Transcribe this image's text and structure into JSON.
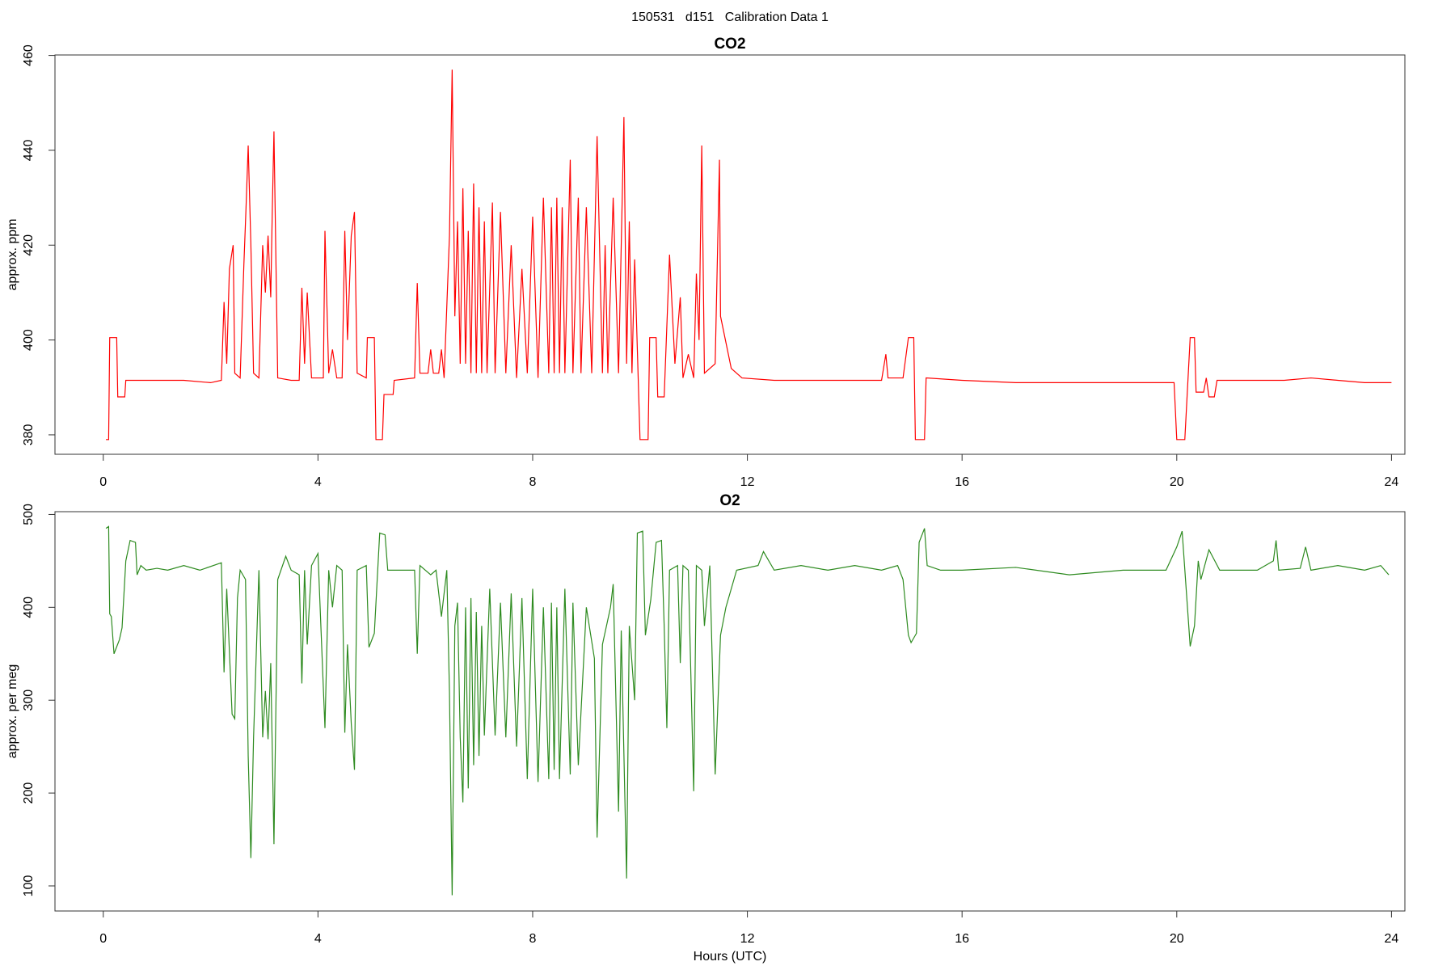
{
  "title": "150531   d151   Calibration Data 1",
  "chart_data": [
    {
      "type": "line",
      "title": "CO2",
      "ylabel": "approx. ppm",
      "color": "#ff0000",
      "x": [
        0.05,
        0.1,
        0.12,
        0.25,
        0.27,
        0.4,
        0.42,
        1,
        1.5,
        2,
        2.2,
        2.25,
        2.3,
        2.35,
        2.42,
        2.45,
        2.55,
        2.62,
        2.66,
        2.7,
        2.75,
        2.8,
        2.9,
        2.97,
        3.02,
        3.07,
        3.12,
        3.15,
        3.18,
        3.25,
        3.5,
        3.65,
        3.7,
        3.75,
        3.8,
        3.88,
        4.1,
        4.13,
        4.2,
        4.27,
        4.35,
        4.45,
        4.5,
        4.55,
        4.62,
        4.68,
        4.73,
        4.9,
        4.92,
        5.05,
        5.08,
        5.2,
        5.23,
        5.4,
        5.42,
        5.8,
        5.85,
        5.9,
        6.05,
        6.1,
        6.15,
        6.25,
        6.3,
        6.35,
        6.45,
        6.5,
        6.55,
        6.6,
        6.65,
        6.7,
        6.75,
        6.8,
        6.85,
        6.9,
        6.95,
        7.0,
        7.05,
        7.1,
        7.15,
        7.25,
        7.3,
        7.4,
        7.5,
        7.6,
        7.7,
        7.8,
        7.9,
        8.0,
        8.1,
        8.2,
        8.3,
        8.35,
        8.4,
        8.45,
        8.5,
        8.55,
        8.6,
        8.7,
        8.75,
        8.85,
        8.9,
        9.0,
        9.1,
        9.2,
        9.3,
        9.35,
        9.4,
        9.5,
        9.6,
        9.7,
        9.75,
        9.8,
        9.85,
        9.9,
        10.0,
        10.15,
        10.18,
        10.3,
        10.33,
        10.45,
        10.55,
        10.65,
        10.75,
        10.8,
        10.9,
        11.0,
        11.05,
        11.1,
        11.15,
        11.2,
        11.4,
        11.48,
        11.5,
        11.7,
        11.9,
        12.5,
        13,
        13.5,
        14,
        14.5,
        14.58,
        14.62,
        14.9,
        15.0,
        15.1,
        15.13,
        15.3,
        15.33,
        16,
        17,
        18,
        19,
        19.95,
        20.0,
        20.15,
        20.25,
        20.33,
        20.36,
        20.5,
        20.55,
        20.6,
        20.7,
        20.75,
        21,
        22,
        22.5,
        23,
        23.5,
        24
      ],
      "values": [
        379,
        379,
        400.5,
        400.5,
        388,
        388,
        391.5,
        391.5,
        391.5,
        391,
        391.5,
        408,
        395,
        415,
        420,
        393,
        392,
        416,
        428,
        441,
        420,
        393,
        392,
        420,
        410,
        422,
        409,
        428,
        444,
        392,
        391.5,
        391.5,
        411,
        395,
        410,
        392,
        392,
        423,
        393,
        398,
        392,
        392,
        423,
        400,
        422,
        427,
        393,
        392,
        400.5,
        400.5,
        379,
        379,
        388.5,
        388.5,
        391.5,
        392,
        412,
        393,
        393,
        398,
        393,
        393,
        398,
        392,
        422,
        457,
        405,
        425,
        395,
        432,
        395,
        423,
        393,
        433,
        393,
        428,
        393,
        425,
        393,
        429,
        393,
        427,
        393,
        420,
        392,
        415,
        393,
        426,
        392,
        430,
        393,
        428,
        393,
        430,
        393,
        428,
        393,
        438,
        393,
        430,
        393,
        428,
        393,
        443,
        393,
        420,
        393,
        430,
        393,
        447,
        395,
        425,
        393,
        417,
        379,
        379,
        400.5,
        400.5,
        388,
        388,
        418,
        395,
        409,
        392,
        397,
        392,
        414,
        400,
        441,
        393,
        395,
        438,
        405,
        394,
        392,
        391.5,
        391.5,
        391.5,
        391.5,
        391.5,
        397,
        392,
        392,
        400.5,
        400.5,
        379,
        379,
        392,
        391.5,
        391,
        391,
        391,
        391,
        379,
        379,
        400.5,
        400.5,
        389,
        389,
        392,
        388,
        388,
        391.5,
        391.5,
        391.5,
        392,
        391.5,
        391,
        391
      ],
      "xlim": [
        -0.9,
        24.25
      ],
      "xticks": [
        0,
        4,
        8,
        12,
        16,
        20,
        24
      ],
      "ylim": [
        375.9,
        460.1
      ],
      "yticks": [
        380,
        400,
        420,
        440,
        460
      ]
    },
    {
      "type": "line",
      "title": "O2",
      "ylabel": "approx. per meg",
      "xlabel": "Hours (UTC)",
      "color": "#2e8b20",
      "x": [
        0.05,
        0.1,
        0.12,
        0.15,
        0.2,
        0.3,
        0.35,
        0.42,
        0.5,
        0.6,
        0.63,
        0.7,
        0.8,
        1,
        1.2,
        1.5,
        1.8,
        2.2,
        2.25,
        2.3,
        2.4,
        2.45,
        2.5,
        2.55,
        2.65,
        2.7,
        2.75,
        2.8,
        2.9,
        2.97,
        3.02,
        3.07,
        3.12,
        3.18,
        3.25,
        3.4,
        3.5,
        3.65,
        3.7,
        3.75,
        3.8,
        3.88,
        4.0,
        4.13,
        4.2,
        4.27,
        4.35,
        4.45,
        4.5,
        4.55,
        4.62,
        4.68,
        4.73,
        4.9,
        4.95,
        5.05,
        5.15,
        5.25,
        5.3,
        5.5,
        5.8,
        5.85,
        5.9,
        6.1,
        6.2,
        6.3,
        6.4,
        6.45,
        6.5,
        6.55,
        6.6,
        6.65,
        6.7,
        6.75,
        6.8,
        6.85,
        6.9,
        6.95,
        7.0,
        7.05,
        7.1,
        7.2,
        7.3,
        7.4,
        7.5,
        7.6,
        7.7,
        7.8,
        7.9,
        8.0,
        8.1,
        8.2,
        8.3,
        8.35,
        8.4,
        8.45,
        8.5,
        8.6,
        8.7,
        8.75,
        8.85,
        9.0,
        9.15,
        9.2,
        9.3,
        9.45,
        9.5,
        9.6,
        9.65,
        9.75,
        9.8,
        9.9,
        9.95,
        10.05,
        10.1,
        10.2,
        10.3,
        10.4,
        10.45,
        10.5,
        10.55,
        10.7,
        10.75,
        10.8,
        10.9,
        11.0,
        11.05,
        11.15,
        11.2,
        11.3,
        11.4,
        11.5,
        11.6,
        11.8,
        12.2,
        12.3,
        12.5,
        13,
        13.5,
        14,
        14.5,
        14.8,
        14.9,
        15.0,
        15.05,
        15.15,
        15.2,
        15.3,
        15.35,
        15.6,
        16,
        17,
        18,
        19,
        19.8,
        20.0,
        20.1,
        20.25,
        20.33,
        20.4,
        20.45,
        20.6,
        20.8,
        21,
        21.5,
        21.8,
        21.85,
        21.9,
        22.3,
        22.4,
        22.5,
        23,
        23.5,
        23.8,
        23.95
      ],
      "values": [
        485,
        487,
        393,
        390,
        350,
        365,
        378,
        450,
        472,
        470,
        435,
        445,
        440,
        442,
        440,
        445,
        440,
        448,
        330,
        420,
        285,
        280,
        410,
        440,
        430,
        240,
        130,
        260,
        440,
        260,
        310,
        258,
        340,
        145,
        430,
        455,
        440,
        435,
        318,
        440,
        360,
        445,
        458,
        270,
        440,
        400,
        445,
        440,
        265,
        360,
        275,
        225,
        440,
        445,
        357,
        372,
        480,
        478,
        440,
        440,
        440,
        350,
        445,
        435,
        440,
        390,
        440,
        308,
        90,
        380,
        405,
        260,
        190,
        400,
        205,
        410,
        230,
        395,
        240,
        380,
        262,
        420,
        262,
        405,
        260,
        415,
        250,
        410,
        215,
        420,
        212,
        400,
        215,
        405,
        225,
        400,
        215,
        420,
        220,
        405,
        230,
        400,
        345,
        152,
        360,
        400,
        425,
        180,
        375,
        108,
        380,
        300,
        480,
        482,
        370,
        408,
        470,
        472,
        380,
        270,
        440,
        445,
        340,
        445,
        440,
        202,
        445,
        440,
        380,
        445,
        220,
        370,
        400,
        440,
        445,
        460,
        440,
        445,
        440,
        445,
        440,
        445,
        430,
        370,
        362,
        372,
        470,
        485,
        445,
        440,
        440,
        443,
        435,
        440,
        440,
        465,
        482,
        358,
        380,
        450,
        430,
        462,
        440,
        440,
        440,
        450,
        472,
        440,
        442,
        465,
        440,
        445,
        440,
        445,
        435
      ],
      "xlim": [
        -0.9,
        24.25
      ],
      "xticks": [
        0,
        4,
        8,
        12,
        16,
        20,
        24
      ],
      "ylim": [
        73,
        503
      ],
      "yticks": [
        100,
        200,
        300,
        400,
        500
      ]
    }
  ]
}
